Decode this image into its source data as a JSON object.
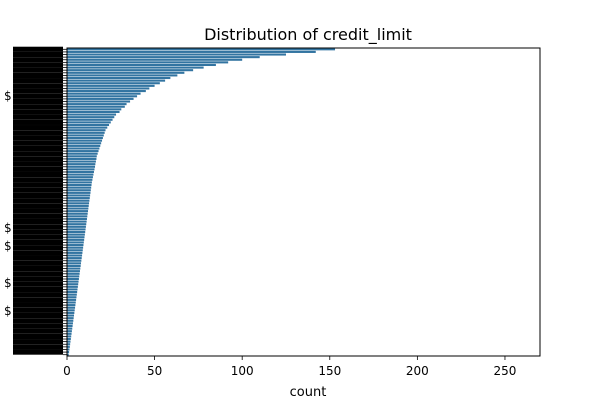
{
  "chart_data": {
    "type": "bar",
    "orientation": "horizontal",
    "title": "Distribution of credit_limit",
    "xlabel": "count",
    "ylabel": "",
    "xlim": [
      0,
      270
    ],
    "xticks": [
      "0",
      "50",
      "100",
      "150",
      "200",
      "250"
    ],
    "y_visible_label_fragments": [
      "$",
      "$",
      "$",
      "$",
      "$"
    ],
    "bar_color": "#3274a1",
    "grid": false,
    "legend": "none",
    "values": [
      153,
      142,
      125,
      110,
      100,
      92,
      85,
      78,
      72,
      67,
      63,
      59,
      56,
      53,
      50,
      47,
      45,
      42,
      40,
      38,
      36,
      34,
      33,
      31,
      30,
      28,
      27,
      26,
      25,
      24,
      23,
      22,
      21.5,
      21,
      20.5,
      20,
      19.5,
      19,
      18.5,
      18,
      17.5,
      17,
      16.8,
      16.5,
      16.2,
      16,
      15.7,
      15.4,
      15.1,
      14.8,
      14.5,
      14.2,
      14,
      13.8,
      13.6,
      13.4,
      13.2,
      13,
      12.8,
      12.6,
      12.4,
      12.2,
      12,
      11.8,
      11.6,
      11.4,
      11.2,
      11,
      10.8,
      10.6,
      10.4,
      10.2,
      10,
      9.8,
      9.6,
      9.4,
      9.2,
      9,
      8.8,
      8.6,
      8.4,
      8.2,
      8,
      7.8,
      7.6,
      7.4,
      7.2,
      7,
      6.8,
      6.6,
      6.4,
      6.2,
      6,
      5.8,
      5.6,
      5.4,
      5.2,
      5,
      4.8,
      4.6,
      4.4,
      4.2,
      4,
      3.8,
      3.6,
      3.4,
      3.2,
      3,
      2.8,
      2.6,
      2.4,
      2.2,
      2,
      1.8,
      1.6,
      1.4,
      1.2,
      1
    ]
  }
}
